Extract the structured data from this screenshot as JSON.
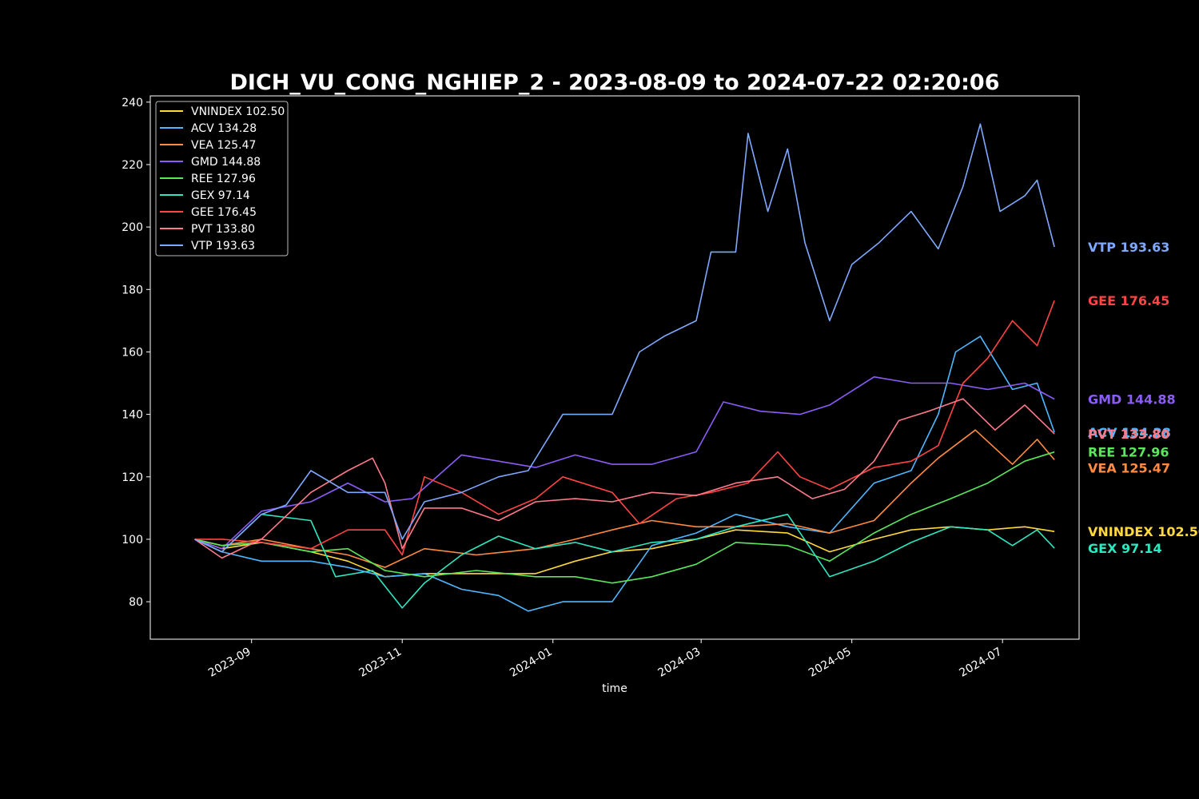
{
  "chart_data": {
    "type": "line",
    "title": "DICH_VU_CONG_NGHIEP_2 - 2023-08-09 to 2024-07-22 02:20:06",
    "xlabel": "time",
    "ylabel": "",
    "ylim": [
      68,
      242
    ],
    "xlim": [
      "2023-07-22",
      "2024-08-01"
    ],
    "x_ticks": [
      "2023-09",
      "2023-11",
      "2024-01",
      "2024-03",
      "2024-05",
      "2024-07"
    ],
    "y_ticks": [
      "80",
      "100",
      "120",
      "140",
      "160",
      "180",
      "200",
      "220",
      "240"
    ],
    "legend_position": "top-left",
    "grid": false,
    "series": [
      {
        "name": "VNINDEX 102.50",
        "color": "#ffd93d",
        "last": 102.5,
        "points": [
          [
            "2023-08-09",
            100
          ],
          [
            "2023-08-20",
            97
          ],
          [
            "2023-09-05",
            99
          ],
          [
            "2023-09-25",
            96
          ],
          [
            "2023-10-10",
            93
          ],
          [
            "2023-10-25",
            88
          ],
          [
            "2023-11-10",
            89
          ],
          [
            "2023-12-01",
            89
          ],
          [
            "2023-12-25",
            89
          ],
          [
            "2024-01-10",
            93
          ],
          [
            "2024-01-25",
            96
          ],
          [
            "2024-02-10",
            97
          ],
          [
            "2024-02-28",
            100
          ],
          [
            "2024-03-15",
            103
          ],
          [
            "2024-04-05",
            102
          ],
          [
            "2024-04-22",
            96
          ],
          [
            "2024-05-10",
            100
          ],
          [
            "2024-05-25",
            103
          ],
          [
            "2024-06-10",
            104
          ],
          [
            "2024-06-25",
            103
          ],
          [
            "2024-07-10",
            104
          ],
          [
            "2024-07-22",
            102.5
          ]
        ]
      },
      {
        "name": "ACV 134.28",
        "color": "#4db8ff",
        "last": 134.28,
        "points": [
          [
            "2023-08-09",
            100
          ],
          [
            "2023-08-20",
            96
          ],
          [
            "2023-09-05",
            93
          ],
          [
            "2023-09-25",
            93
          ],
          [
            "2023-10-10",
            91
          ],
          [
            "2023-10-25",
            88
          ],
          [
            "2023-11-10",
            89
          ],
          [
            "2023-11-25",
            84
          ],
          [
            "2023-12-10",
            82
          ],
          [
            "2023-12-22",
            77
          ],
          [
            "2024-01-05",
            80
          ],
          [
            "2024-01-25",
            80
          ],
          [
            "2024-02-10",
            98
          ],
          [
            "2024-02-28",
            102
          ],
          [
            "2024-03-15",
            108
          ],
          [
            "2024-04-05",
            104
          ],
          [
            "2024-04-22",
            102
          ],
          [
            "2024-05-10",
            118
          ],
          [
            "2024-05-25",
            122
          ],
          [
            "2024-06-05",
            140
          ],
          [
            "2024-06-12",
            160
          ],
          [
            "2024-06-22",
            165
          ],
          [
            "2024-07-05",
            148
          ],
          [
            "2024-07-15",
            150
          ],
          [
            "2024-07-22",
            134.28
          ]
        ]
      },
      {
        "name": "VEA 125.47",
        "color": "#ff8c42",
        "last": 125.47,
        "points": [
          [
            "2023-08-09",
            100
          ],
          [
            "2023-08-20",
            98
          ],
          [
            "2023-09-05",
            100
          ],
          [
            "2023-09-25",
            97
          ],
          [
            "2023-10-10",
            95
          ],
          [
            "2023-10-25",
            91
          ],
          [
            "2023-11-10",
            97
          ],
          [
            "2023-12-01",
            95
          ],
          [
            "2023-12-25",
            97
          ],
          [
            "2024-01-10",
            100
          ],
          [
            "2024-01-25",
            103
          ],
          [
            "2024-02-10",
            106
          ],
          [
            "2024-02-28",
            104
          ],
          [
            "2024-03-15",
            104
          ],
          [
            "2024-04-05",
            105
          ],
          [
            "2024-04-22",
            102
          ],
          [
            "2024-05-10",
            106
          ],
          [
            "2024-05-25",
            118
          ],
          [
            "2024-06-05",
            126
          ],
          [
            "2024-06-20",
            135
          ],
          [
            "2024-07-05",
            124
          ],
          [
            "2024-07-15",
            132
          ],
          [
            "2024-07-22",
            125.47
          ]
        ]
      },
      {
        "name": "GMD 144.88",
        "color": "#8b5cf6",
        "last": 144.88,
        "points": [
          [
            "2023-08-09",
            100
          ],
          [
            "2023-08-20",
            97
          ],
          [
            "2023-09-05",
            109
          ],
          [
            "2023-09-25",
            112
          ],
          [
            "2023-10-10",
            118
          ],
          [
            "2023-10-25",
            112
          ],
          [
            "2023-11-05",
            113
          ],
          [
            "2023-11-25",
            127
          ],
          [
            "2023-12-10",
            125
          ],
          [
            "2023-12-25",
            123
          ],
          [
            "2024-01-10",
            127
          ],
          [
            "2024-01-25",
            124
          ],
          [
            "2024-02-10",
            124
          ],
          [
            "2024-02-28",
            128
          ],
          [
            "2024-03-10",
            144
          ],
          [
            "2024-03-25",
            141
          ],
          [
            "2024-04-10",
            140
          ],
          [
            "2024-04-22",
            143
          ],
          [
            "2024-05-10",
            152
          ],
          [
            "2024-05-25",
            150
          ],
          [
            "2024-06-10",
            150
          ],
          [
            "2024-06-25",
            148
          ],
          [
            "2024-07-10",
            150
          ],
          [
            "2024-07-22",
            144.88
          ]
        ]
      },
      {
        "name": "REE 127.96",
        "color": "#5ce65c",
        "last": 127.96,
        "points": [
          [
            "2023-08-09",
            100
          ],
          [
            "2023-08-20",
            98
          ],
          [
            "2023-09-05",
            99
          ],
          [
            "2023-09-25",
            96
          ],
          [
            "2023-10-10",
            97
          ],
          [
            "2023-10-25",
            90
          ],
          [
            "2023-11-10",
            88
          ],
          [
            "2023-12-01",
            90
          ],
          [
            "2023-12-25",
            88
          ],
          [
            "2024-01-10",
            88
          ],
          [
            "2024-01-25",
            86
          ],
          [
            "2024-02-10",
            88
          ],
          [
            "2024-02-28",
            92
          ],
          [
            "2024-03-15",
            99
          ],
          [
            "2024-04-05",
            98
          ],
          [
            "2024-04-22",
            93
          ],
          [
            "2024-05-10",
            102
          ],
          [
            "2024-05-25",
            108
          ],
          [
            "2024-06-10",
            113
          ],
          [
            "2024-06-25",
            118
          ],
          [
            "2024-07-10",
            125
          ],
          [
            "2024-07-22",
            127.96
          ]
        ]
      },
      {
        "name": "GEX 97.14",
        "color": "#2ee6c0",
        "last": 97.14,
        "points": [
          [
            "2023-08-09",
            100
          ],
          [
            "2023-08-20",
            96
          ],
          [
            "2023-09-05",
            108
          ],
          [
            "2023-09-25",
            106
          ],
          [
            "2023-10-05",
            88
          ],
          [
            "2023-10-20",
            90
          ],
          [
            "2023-11-01",
            78
          ],
          [
            "2023-11-10",
            86
          ],
          [
            "2023-11-25",
            95
          ],
          [
            "2023-12-10",
            101
          ],
          [
            "2023-12-25",
            97
          ],
          [
            "2024-01-10",
            99
          ],
          [
            "2024-01-25",
            96
          ],
          [
            "2024-02-10",
            99
          ],
          [
            "2024-02-28",
            100
          ],
          [
            "2024-03-15",
            104
          ],
          [
            "2024-04-05",
            108
          ],
          [
            "2024-04-22",
            88
          ],
          [
            "2024-05-10",
            93
          ],
          [
            "2024-05-25",
            99
          ],
          [
            "2024-06-10",
            104
          ],
          [
            "2024-06-25",
            103
          ],
          [
            "2024-07-05",
            98
          ],
          [
            "2024-07-15",
            103
          ],
          [
            "2024-07-22",
            97.14
          ]
        ]
      },
      {
        "name": "GEE 176.45",
        "color": "#ff4444",
        "last": 176.45,
        "points": [
          [
            "2023-08-09",
            100
          ],
          [
            "2023-08-20",
            100
          ],
          [
            "2023-09-05",
            99
          ],
          [
            "2023-09-25",
            97
          ],
          [
            "2023-10-10",
            103
          ],
          [
            "2023-10-25",
            103
          ],
          [
            "2023-11-01",
            95
          ],
          [
            "2023-11-10",
            120
          ],
          [
            "2023-11-25",
            115
          ],
          [
            "2023-12-10",
            108
          ],
          [
            "2023-12-25",
            113
          ],
          [
            "2024-01-05",
            120
          ],
          [
            "2024-01-25",
            115
          ],
          [
            "2024-02-05",
            105
          ],
          [
            "2024-02-20",
            113
          ],
          [
            "2024-03-05",
            115
          ],
          [
            "2024-03-20",
            118
          ],
          [
            "2024-04-01",
            128
          ],
          [
            "2024-04-10",
            120
          ],
          [
            "2024-04-22",
            116
          ],
          [
            "2024-05-10",
            123
          ],
          [
            "2024-05-25",
            125
          ],
          [
            "2024-06-05",
            130
          ],
          [
            "2024-06-15",
            150
          ],
          [
            "2024-06-25",
            158
          ],
          [
            "2024-07-05",
            170
          ],
          [
            "2024-07-15",
            162
          ],
          [
            "2024-07-22",
            176.45
          ]
        ]
      },
      {
        "name": "PVT 133.80",
        "color": "#ff7a8a",
        "last": 133.8,
        "points": [
          [
            "2023-08-09",
            100
          ],
          [
            "2023-08-20",
            94
          ],
          [
            "2023-09-05",
            100
          ],
          [
            "2023-09-25",
            115
          ],
          [
            "2023-10-10",
            122
          ],
          [
            "2023-10-20",
            126
          ],
          [
            "2023-10-25",
            118
          ],
          [
            "2023-11-01",
            97
          ],
          [
            "2023-11-10",
            110
          ],
          [
            "2023-11-25",
            110
          ],
          [
            "2023-12-10",
            106
          ],
          [
            "2023-12-25",
            112
          ],
          [
            "2024-01-10",
            113
          ],
          [
            "2024-01-25",
            112
          ],
          [
            "2024-02-10",
            115
          ],
          [
            "2024-02-28",
            114
          ],
          [
            "2024-03-15",
            118
          ],
          [
            "2024-04-01",
            120
          ],
          [
            "2024-04-15",
            113
          ],
          [
            "2024-04-28",
            116
          ],
          [
            "2024-05-10",
            125
          ],
          [
            "2024-05-20",
            138
          ],
          [
            "2024-06-01",
            141
          ],
          [
            "2024-06-15",
            145
          ],
          [
            "2024-06-28",
            135
          ],
          [
            "2024-07-10",
            143
          ],
          [
            "2024-07-22",
            133.8
          ]
        ]
      },
      {
        "name": "VTP 193.63",
        "color": "#7fa8ff",
        "last": 193.63,
        "points": [
          [
            "2023-08-09",
            100
          ],
          [
            "2023-08-20",
            96
          ],
          [
            "2023-09-05",
            108
          ],
          [
            "2023-09-15",
            111
          ],
          [
            "2023-09-25",
            122
          ],
          [
            "2023-10-10",
            115
          ],
          [
            "2023-10-25",
            115
          ],
          [
            "2023-11-01",
            100
          ],
          [
            "2023-11-10",
            112
          ],
          [
            "2023-11-25",
            115
          ],
          [
            "2023-12-10",
            120
          ],
          [
            "2023-12-22",
            122
          ],
          [
            "2024-01-05",
            140
          ],
          [
            "2024-01-25",
            140
          ],
          [
            "2024-02-05",
            160
          ],
          [
            "2024-02-15",
            165
          ],
          [
            "2024-02-28",
            170
          ],
          [
            "2024-03-05",
            192
          ],
          [
            "2024-03-15",
            192
          ],
          [
            "2024-03-20",
            230
          ],
          [
            "2024-03-28",
            205
          ],
          [
            "2024-04-05",
            225
          ],
          [
            "2024-04-12",
            195
          ],
          [
            "2024-04-22",
            170
          ],
          [
            "2024-05-01",
            188
          ],
          [
            "2024-05-12",
            195
          ],
          [
            "2024-05-25",
            205
          ],
          [
            "2024-06-05",
            193
          ],
          [
            "2024-06-15",
            213
          ],
          [
            "2024-06-22",
            233
          ],
          [
            "2024-06-30",
            205
          ],
          [
            "2024-07-10",
            210
          ],
          [
            "2024-07-15",
            215
          ],
          [
            "2024-07-22",
            193.63
          ]
        ]
      }
    ],
    "end_labels": [
      "VTP 193.63",
      "GEE 176.45",
      "GMD 144.88",
      "ACV 134.28",
      "PVT 133.80",
      "REE 127.96",
      "VEA 125.47",
      "VNINDEX 102.50",
      "GEX 97.14"
    ]
  }
}
